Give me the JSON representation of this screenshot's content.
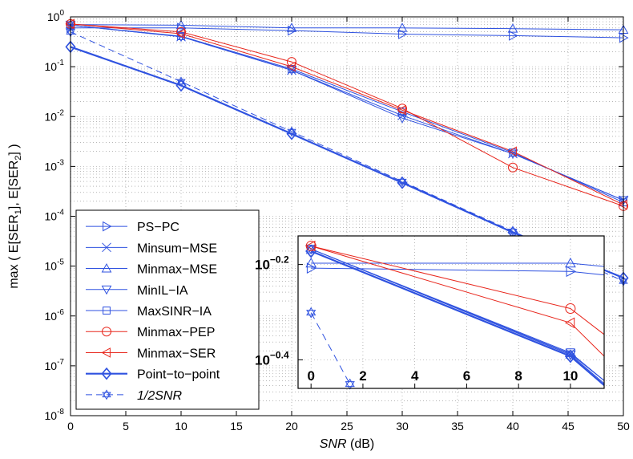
{
  "chart_data": {
    "type": "line",
    "xlabel_italic": "SNR",
    "xlabel_unit": " (dB)",
    "ylabel_parts": [
      "max ( E[SER",
      "1",
      "], E[SER",
      "2",
      "] )"
    ],
    "xlim": [
      0,
      50
    ],
    "ylim_log10": [
      -8,
      0
    ],
    "xticks": [
      0,
      5,
      10,
      15,
      20,
      25,
      30,
      35,
      40,
      45,
      50
    ],
    "xtick_labels": [
      "0",
      "5",
      "10",
      "15",
      "20",
      "25",
      "30",
      "35",
      "40",
      "45",
      "50"
    ],
    "yticks_exp": [
      0,
      -1,
      -2,
      -3,
      -4,
      -5,
      -6,
      -7,
      -8
    ],
    "ytick_labels": [
      {
        "base": "10",
        "exp": "0"
      },
      {
        "base": "10",
        "exp": "-1"
      },
      {
        "base": "10",
        "exp": "-2"
      },
      {
        "base": "10",
        "exp": "-3"
      },
      {
        "base": "10",
        "exp": "-4"
      },
      {
        "base": "10",
        "exp": "-5"
      },
      {
        "base": "10",
        "exp": "-6"
      },
      {
        "base": "10",
        "exp": "-7"
      },
      {
        "base": "10",
        "exp": "-8"
      }
    ],
    "grid": true,
    "legend_position": "bottom-left",
    "colors": {
      "blue": "#2f52e0",
      "red": "#e8261c"
    },
    "series": [
      {
        "name": "PS−PC",
        "color": "#2f52e0",
        "marker": "triangle-right",
        "dash": false,
        "width": 1,
        "x": [
          0,
          10,
          20,
          30,
          40,
          50
        ],
        "y": [
          0.6,
          0.6,
          0.53,
          0.45,
          0.42,
          0.38
        ]
      },
      {
        "name": "Minsum−MSE",
        "color": "#2f52e0",
        "marker": "x",
        "dash": false,
        "width": 1,
        "x": [
          0,
          10,
          20,
          30,
          40,
          50
        ],
        "y": [
          0.68,
          0.4,
          0.085,
          0.0105,
          0.0018,
          0.00021
        ]
      },
      {
        "name": "Minmax−MSE",
        "color": "#2f52e0",
        "marker": "triangle-up",
        "dash": false,
        "width": 1,
        "x": [
          0,
          10,
          20,
          30,
          40,
          50
        ],
        "y": [
          0.7,
          0.68,
          0.6,
          0.6,
          0.58,
          0.55
        ]
      },
      {
        "name": "MinIL−IA",
        "color": "#2f52e0",
        "marker": "triangle-down",
        "dash": false,
        "width": 1,
        "x": [
          0,
          10,
          20,
          30,
          40,
          50
        ],
        "y": [
          0.68,
          0.4,
          0.085,
          0.0093,
          0.0018,
          0.00021
        ]
      },
      {
        "name": "MaxSINR−IA",
        "color": "#2f52e0",
        "marker": "square",
        "dash": false,
        "width": 1,
        "x": [
          0,
          10,
          20,
          30,
          40,
          50
        ],
        "y": [
          0.68,
          0.41,
          0.09,
          0.0125,
          0.0019,
          0.00019
        ]
      },
      {
        "name": "Minmax−PEP",
        "color": "#e8261c",
        "marker": "circle",
        "dash": false,
        "width": 1,
        "x": [
          0,
          10,
          20,
          30,
          40,
          50
        ],
        "y": [
          0.72,
          0.5,
          0.125,
          0.0145,
          0.00095,
          0.00016
        ]
      },
      {
        "name": "Minmax−SER",
        "color": "#e8261c",
        "marker": "triangle-left",
        "dash": false,
        "width": 1,
        "x": [
          0,
          10,
          20,
          30,
          40,
          50
        ],
        "y": [
          0.72,
          0.46,
          0.1,
          0.0135,
          0.002,
          0.00017
        ]
      },
      {
        "name": "Point−to−point",
        "color": "#2f52e0",
        "marker": "diamond",
        "dash": false,
        "width": 2.2,
        "x": [
          0,
          10,
          20,
          30,
          40,
          50
        ],
        "y": [
          0.25,
          0.042,
          0.0045,
          0.00047,
          4.75e-05,
          5.8e-06
        ]
      },
      {
        "name": "1/2SNR",
        "color": "#2f52e0",
        "marker": "hexagram",
        "dash": true,
        "width": 1,
        "italic": true,
        "x": [
          0,
          10,
          20,
          30,
          40,
          50
        ],
        "y": [
          0.5,
          0.05,
          0.005,
          0.0005,
          5e-05,
          5e-06
        ]
      }
    ],
    "inset": {
      "xlim": [
        -0.5,
        11.3
      ],
      "ylim_log10": [
        -0.46,
        -0.14
      ],
      "xticks": [
        0,
        2,
        4,
        6,
        8,
        10
      ],
      "xtick_labels": [
        "0",
        "2",
        "4",
        "6",
        "8",
        "10"
      ],
      "yticks_exp": [
        -0.2,
        -0.4
      ],
      "ytick_labels": [
        {
          "base": "10",
          "exp": "−0.2"
        },
        {
          "base": "10",
          "exp": "−0.4"
        }
      ],
      "series": [
        {
          "name": "PS−PC",
          "x": [
            0,
            10,
            11.3
          ],
          "y": [
            0.62,
            0.61,
            0.6
          ]
        },
        {
          "name": "Minmax−MSE",
          "x": [
            0,
            10,
            11.3
          ],
          "y": [
            0.635,
            0.635,
            0.625
          ]
        },
        {
          "name": "Minsum−MSE",
          "x": [
            0,
            10,
            11.3
          ],
          "y": [
            0.68,
            0.41,
            0.36
          ]
        },
        {
          "name": "MinIL−IA",
          "x": [
            0,
            10,
            11.3
          ],
          "y": [
            0.68,
            0.408,
            0.355
          ]
        },
        {
          "name": "MaxSINR−IA",
          "x": [
            0,
            10,
            11.3
          ],
          "y": [
            0.68,
            0.412,
            0.36
          ]
        },
        {
          "name": "Point−to−point",
          "x": [
            0,
            10,
            11.3
          ],
          "y": [
            0.673,
            0.405,
            0.352
          ]
        },
        {
          "name": "Minmax−PEP",
          "x": [
            0,
            10,
            11.3
          ],
          "y": [
            0.69,
            0.51,
            0.45
          ]
        },
        {
          "name": "Minmax−SER",
          "x": [
            0,
            10,
            11.3
          ],
          "y": [
            0.69,
            0.476,
            0.405
          ]
        },
        {
          "name": "1/2SNR",
          "x": [
            0,
            1.5
          ],
          "y": [
            0.5,
            0.354
          ]
        }
      ]
    }
  }
}
